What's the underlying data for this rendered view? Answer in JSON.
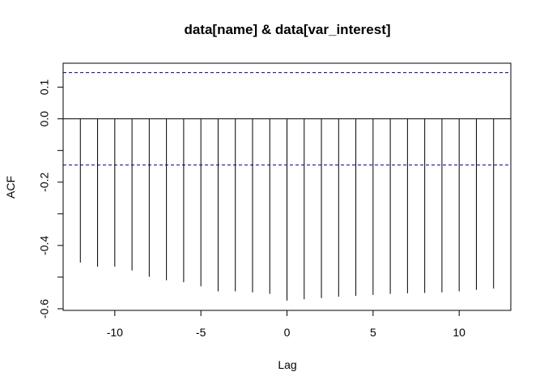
{
  "chart_data": {
    "type": "bar",
    "title": "data[name] & data[var_interest]",
    "xlabel": "Lag",
    "ylabel": "ACF",
    "xlim": [
      -13,
      13
    ],
    "ylim": [
      -0.6,
      0.145
    ],
    "x_ticks": [
      -10,
      -5,
      0,
      5,
      10
    ],
    "x_tick_labels": [
      "-10",
      "-5",
      "0",
      "5",
      "10"
    ],
    "y_ticks": [
      -0.6,
      -0.5,
      -0.4,
      -0.3,
      -0.2,
      -0.1,
      0.0,
      0.1
    ],
    "y_tick_labels": [
      "-0.6",
      "",
      "-0.4",
      "",
      "-0.2",
      "",
      "0.0",
      "0.1"
    ],
    "confidence_bound": 0.146,
    "lags": [
      -12,
      -11,
      -10,
      -9,
      -8,
      -7,
      -6,
      -5,
      -4,
      -3,
      -2,
      -1,
      0,
      1,
      2,
      3,
      4,
      5,
      6,
      7,
      8,
      9,
      10,
      11,
      12
    ],
    "values": [
      -0.454,
      -0.467,
      -0.467,
      -0.479,
      -0.499,
      -0.51,
      -0.516,
      -0.529,
      -0.545,
      -0.545,
      -0.548,
      -0.553,
      -0.574,
      -0.57,
      -0.566,
      -0.562,
      -0.559,
      -0.556,
      -0.553,
      -0.551,
      -0.55,
      -0.548,
      -0.545,
      -0.54,
      -0.536
    ],
    "colors": {
      "bars": "#000000",
      "bounds": "#00008b",
      "zero_line": "#000000",
      "frame": "#000000"
    },
    "grid": false
  }
}
